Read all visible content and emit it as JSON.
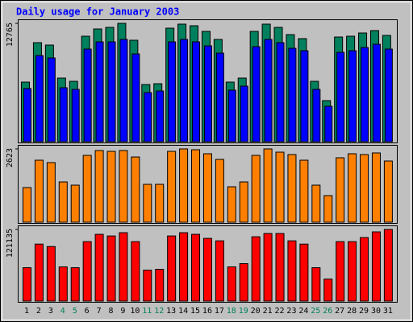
{
  "chart_data": [
    {
      "type": "bar",
      "title": "Daily usage for January 2003",
      "ylim": [
        0,
        12765
      ],
      "yticks": [
        12765
      ],
      "series": [
        {
          "color": "#00805c",
          "values": [
            6426,
            10681,
            10421,
            6860,
            6513,
            11376,
            12158,
            12331,
            12765,
            10942,
            6166,
            6252,
            12244,
            12679,
            12505,
            11897,
            11029,
            6426,
            6860,
            11897,
            12679,
            12331,
            11550,
            11116,
            6513,
            4429,
            11289,
            11376,
            11723,
            11984,
            11463
          ]
        },
        {
          "color": "#0000ff",
          "values": [
            5731,
            9292,
            9031,
            5818,
            5645,
            9987,
            10768,
            10768,
            11029,
            9466,
            5297,
            5471,
            10768,
            11029,
            10768,
            10334,
            9552,
            5558,
            5992,
            10247,
            11029,
            10681,
            10073,
            9813,
            5645,
            3821,
            9639,
            9813,
            10160,
            10508,
            9987
          ]
        }
      ]
    },
    {
      "type": "bar",
      "ylim": [
        0,
        2623
      ],
      "yticks": [
        2623
      ],
      "series": [
        {
          "color": "#ff8000",
          "values": [
            1239,
            2219,
            2133,
            1441,
            1326,
            2392,
            2565,
            2536,
            2565,
            2334,
            1355,
            1355,
            2536,
            2623,
            2594,
            2450,
            2248,
            1268,
            1441,
            2392,
            2623,
            2507,
            2421,
            2219,
            1326,
            951,
            2306,
            2450,
            2421,
            2479,
            2190
          ]
        }
      ]
    },
    {
      "type": "bar",
      "ylim": [
        0,
        121135
      ],
      "yticks": [
        121135
      ],
      "categories": [
        "1",
        "2",
        "3",
        "4",
        "5",
        "6",
        "7",
        "8",
        "9",
        "10",
        "11",
        "12",
        "13",
        "14",
        "15",
        "16",
        "17",
        "18",
        "19",
        "20",
        "21",
        "22",
        "23",
        "24",
        "25",
        "26",
        "27",
        "28",
        "29",
        "30",
        "31"
      ],
      "category_colors": [
        "#000000",
        "#000000",
        "#000000",
        "#00805c",
        "#00805c",
        "#000000",
        "#000000",
        "#000000",
        "#000000",
        "#000000",
        "#00805c",
        "#00805c",
        "#000000",
        "#000000",
        "#000000",
        "#000000",
        "#000000",
        "#00805c",
        "#00805c",
        "#000000",
        "#000000",
        "#000000",
        "#000000",
        "#000000",
        "#00805c",
        "#00805c",
        "#000000",
        "#000000",
        "#000000",
        "#000000",
        "#000000"
      ],
      "series": [
        {
          "color": "#ff0000",
          "values": [
            56437,
            96355,
            92226,
            57813,
            56437,
            100485,
            112873,
            110120,
            115626,
            100485,
            52307,
            53684,
            110120,
            115626,
            112873,
            105991,
            101861,
            57813,
            63319,
            108744,
            114250,
            114250,
            101861,
            96355,
            56437,
            37166,
            100485,
            100485,
            107367,
            117003,
            121135
          ]
        }
      ]
    }
  ]
}
